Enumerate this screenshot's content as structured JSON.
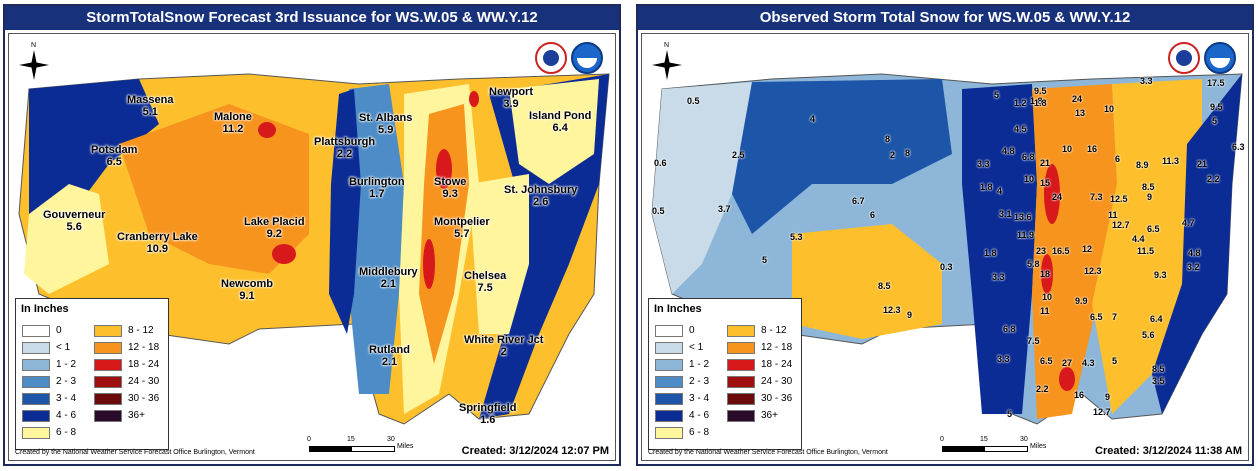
{
  "colors": {
    "c0": "#ffffff",
    "lt1": "#c9dbe9",
    "c1_2": "#8db6d8",
    "c2_3": "#4d8cc6",
    "c3_4": "#1d55a8",
    "c4_6": "#0c2c95",
    "c6_8": "#fff59d",
    "c8_12": "#fdc02c",
    "c12_18": "#f7941d",
    "c18_24": "#d7191c",
    "c24_30": "#a00f10",
    "c30_36": "#6b0a0a",
    "c36": "#2a0a2a",
    "title_bar": "#17317a"
  },
  "left": {
    "title": "StormTotalSnow Forecast 3rd Issuance for WS.W.05 & WW.Y.12",
    "legend_title": "In Inches",
    "credit": "Created by the National Weather Service Forecast Office Burlington, Vermont",
    "created": "Created: 3/12/2024 12:07 PM",
    "towns": [
      {
        "name": "Massena",
        "value": "5.1"
      },
      {
        "name": "Malone",
        "value": "11.2"
      },
      {
        "name": "Potsdam",
        "value": "6.5"
      },
      {
        "name": "Plattsburgh",
        "value": "2.2"
      },
      {
        "name": "St. Albans",
        "value": "5.9"
      },
      {
        "name": "Newport",
        "value": "3.9"
      },
      {
        "name": "Island Pond",
        "value": "6.4"
      },
      {
        "name": "Burlington",
        "value": "1.7"
      },
      {
        "name": "Stowe",
        "value": "9.3"
      },
      {
        "name": "St. Johnsbury",
        "value": "2.6"
      },
      {
        "name": "Gouverneur",
        "value": "5.6"
      },
      {
        "name": "Cranberry Lake",
        "value": "10.9"
      },
      {
        "name": "Lake Placid",
        "value": "9.2"
      },
      {
        "name": "Montpelier",
        "value": "5.7"
      },
      {
        "name": "Newcomb",
        "value": "9.1"
      },
      {
        "name": "Middlebury",
        "value": "2.1"
      },
      {
        "name": "Chelsea",
        "value": "7.5"
      },
      {
        "name": "White River Jct",
        "value": "2"
      },
      {
        "name": "Rutland",
        "value": "2.1"
      },
      {
        "name": "Springfield",
        "value": "1.6"
      }
    ]
  },
  "right": {
    "title": "Observed Storm Total Snow for WS.W.05 & WW.Y.12",
    "legend_title": "In Inches",
    "credit": "Created by the National Weather Service Forecast Office Burlington, Vermont",
    "created": "Created: 3/12/2024 11:38 AM",
    "obs": [
      "0.5",
      "0.6",
      "0.5",
      "2.5",
      "3.7",
      "4",
      "5",
      "5.3",
      "6.7",
      "6",
      "8",
      "2",
      "8",
      "8.5",
      "12.3",
      "9",
      "0.3",
      "5",
      "1.2",
      "1.8",
      "4.5",
      "9.5",
      "1.8",
      "24",
      "13",
      "10",
      "17.5",
      "9.5",
      "5",
      "6.3",
      "3.3",
      "3.3",
      "4.8",
      "6.8",
      "21",
      "10",
      "16",
      "6",
      "8.9",
      "11.3",
      "21",
      "2.2",
      "1.8",
      "4",
      "10",
      "15",
      "24",
      "7.3",
      "12.5",
      "8.5",
      "9",
      "11",
      "3.1",
      "13.6",
      "11.9",
      "12.7",
      "6.5",
      "4.4",
      "11.5",
      "4.7",
      "4.8",
      "3.2",
      "23",
      "16.5",
      "12",
      "12.3",
      "9.3",
      "1.8",
      "5.8",
      "18",
      "3.3",
      "10",
      "9.9",
      "11",
      "6.5",
      "7",
      "6.4",
      "5.6",
      "7.5",
      "6.5",
      "27",
      "4.3",
      "5",
      "3.3",
      "8.5",
      "3.5",
      "2.2",
      "16",
      "9",
      "12.7",
      "5",
      "6.8"
    ]
  },
  "legend": {
    "items_left": [
      "0",
      "< 1",
      "1 - 2",
      "2 - 3",
      "3 - 4",
      "4 - 6",
      "6 - 8"
    ],
    "items_right": [
      "8 - 12",
      "12 - 18",
      "18 - 24",
      "24 - 30",
      "30 - 36",
      "36+"
    ]
  },
  "scale": {
    "t0": "0",
    "t1": "15",
    "t2": "30",
    "unit": "Miles"
  },
  "north": "N"
}
